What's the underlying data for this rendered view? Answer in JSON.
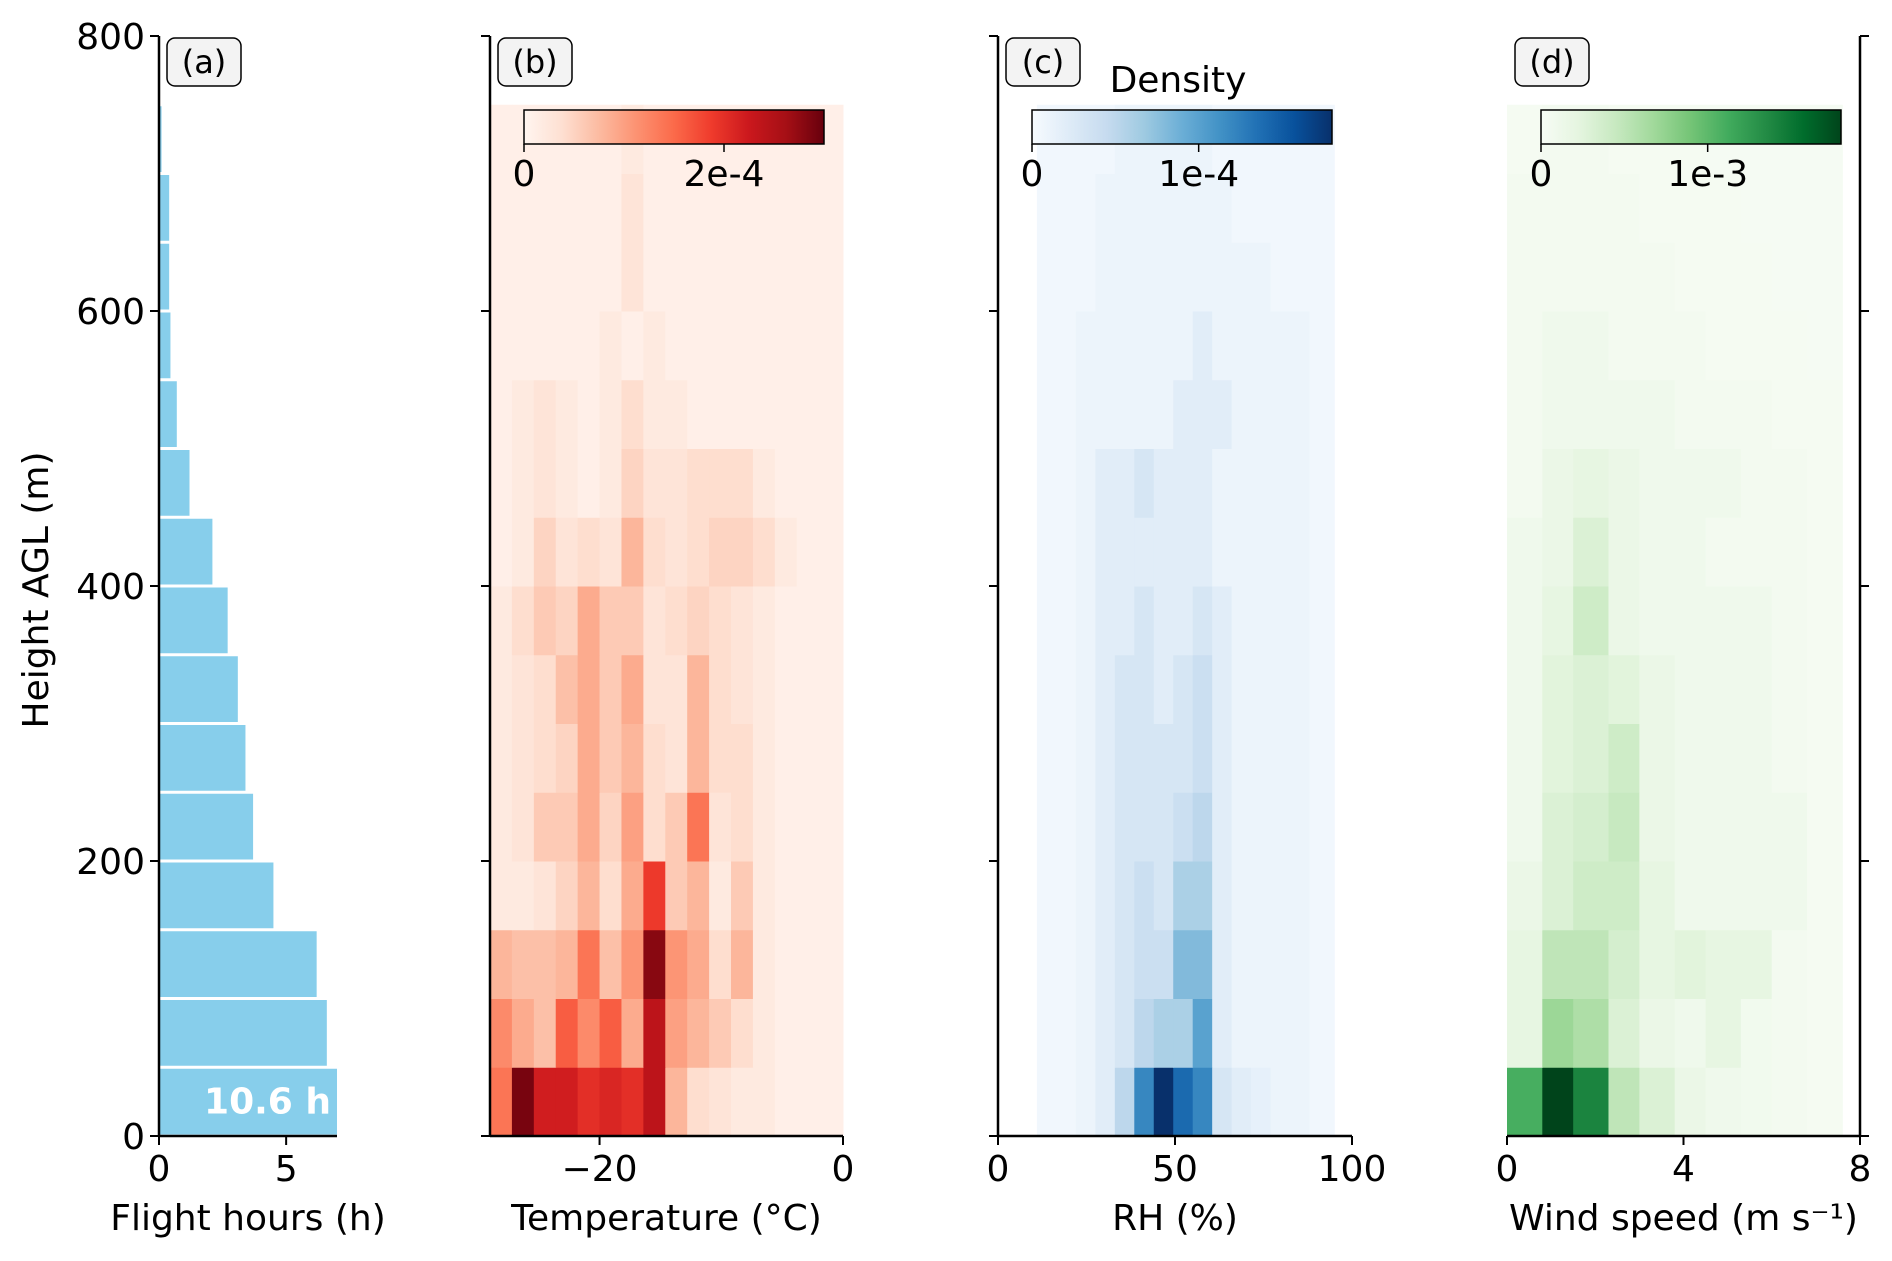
{
  "figure": {
    "ylabel": "Height AGL (m)",
    "density_label": "Density",
    "yticks": [
      0,
      200,
      400,
      600,
      800
    ],
    "ylim": [
      0,
      800
    ],
    "bin_height_m": 50
  },
  "chart_data": [
    {
      "type": "bar",
      "orientation": "horizontal",
      "panel_label": "(a)",
      "xlabel": "Flight hours (h)",
      "xlim": [
        0,
        7
      ],
      "xticks": [
        0,
        5
      ],
      "color": "#87ceeb",
      "annotation": "10.6 h",
      "bins": [
        [
          0,
          50
        ],
        [
          50,
          100
        ],
        [
          100,
          150
        ],
        [
          150,
          200
        ],
        [
          200,
          250
        ],
        [
          250,
          300
        ],
        [
          300,
          350
        ],
        [
          350,
          400
        ],
        [
          400,
          450
        ],
        [
          450,
          500
        ],
        [
          500,
          550
        ],
        [
          550,
          600
        ],
        [
          600,
          650
        ],
        [
          650,
          700
        ],
        [
          700,
          750
        ]
      ],
      "values": [
        7.0,
        6.6,
        6.2,
        4.5,
        3.7,
        3.4,
        3.1,
        2.7,
        2.1,
        1.2,
        0.7,
        0.45,
        0.4,
        0.4,
        0.1
      ]
    },
    {
      "type": "heatmap",
      "panel_label": "(b)",
      "xlabel": "Temperature (°C)",
      "xlim": [
        -29,
        0
      ],
      "xticks": [
        -20,
        0
      ],
      "xticklabels": [
        "−20",
        "0"
      ],
      "x_edges": [
        -29,
        -27.2,
        -25.4,
        -23.6,
        -21.8,
        -20,
        -18.2,
        -16.4,
        -14.6,
        -12.8,
        -11,
        -9.2,
        -7.4,
        -5.6,
        -3.8,
        -2,
        0
      ],
      "colormap": "Reds",
      "colors": [
        "#fff5f0",
        "#fee0d2",
        "#fcbba1",
        "#fc9272",
        "#fb6a4a",
        "#ef3b2c",
        "#cb181d",
        "#a50f15",
        "#67000d"
      ],
      "colorbar_ticks": [
        0,
        0.0002
      ],
      "colorbar_ticklabels": [
        "0",
        "2e-4"
      ],
      "vmax": 0.0003,
      "row_bins_from_ground": "50 m bins from 0 to 750 m",
      "density": [
        [
          0.00014,
          0.00029,
          0.00022,
          0.00022,
          0.0002,
          0.00021,
          0.0002,
          0.00024,
          8e-05,
          4e-05,
          3e-05,
          2e-05,
          2e-05,
          1e-05,
          1e-05,
          1e-05
        ],
        [
          0.00012,
          9e-05,
          7e-05,
          0.00016,
          0.00012,
          0.00016,
          9e-05,
          0.00024,
          0.0001,
          8e-05,
          6e-05,
          4e-05,
          2e-05,
          1e-05,
          1e-05,
          1e-05
        ],
        [
          8e-05,
          7e-05,
          7e-05,
          8e-05,
          0.00014,
          7e-05,
          0.00011,
          0.00028,
          0.00011,
          9e-05,
          4e-05,
          8e-05,
          2e-05,
          1e-05,
          1e-05,
          1e-05
        ],
        [
          2e-05,
          2e-05,
          3e-05,
          5e-05,
          8e-05,
          4e-05,
          9e-05,
          0.00019,
          6e-05,
          8e-05,
          2e-05,
          6e-05,
          2e-05,
          1e-05,
          1e-05,
          1e-05
        ],
        [
          2e-05,
          3e-05,
          6e-05,
          6e-05,
          9e-05,
          5e-05,
          0.0001,
          4e-05,
          6e-05,
          0.00014,
          3e-05,
          4e-05,
          2e-05,
          1e-05,
          1e-05,
          1e-05
        ],
        [
          2e-05,
          3e-05,
          4e-05,
          5e-05,
          9e-05,
          6e-05,
          8e-05,
          4e-05,
          3e-05,
          8e-05,
          4e-05,
          4e-05,
          2e-05,
          1e-05,
          1e-05,
          1e-05
        ],
        [
          2e-05,
          3e-05,
          4e-05,
          7e-05,
          9e-05,
          6e-05,
          9e-05,
          3e-05,
          3e-05,
          8e-05,
          4e-05,
          3e-05,
          2e-05,
          1e-05,
          1e-05,
          1e-05
        ],
        [
          2e-05,
          4e-05,
          6e-05,
          5e-05,
          9e-05,
          6e-05,
          6e-05,
          3e-05,
          4e-05,
          5e-05,
          4e-05,
          3e-05,
          2e-05,
          1e-05,
          1e-05,
          1e-05
        ],
        [
          1e-05,
          2e-05,
          5e-05,
          3e-05,
          4e-05,
          3e-05,
          8e-05,
          4e-05,
          3e-05,
          4e-05,
          5e-05,
          5e-05,
          4e-05,
          2e-05,
          1e-05,
          1e-05
        ],
        [
          1e-05,
          2e-05,
          3e-05,
          2e-05,
          1e-05,
          2e-05,
          5e-05,
          3e-05,
          3e-05,
          4e-05,
          4e-05,
          4e-05,
          2e-05,
          1e-05,
          1e-05,
          1e-05
        ],
        [
          1e-05,
          2e-05,
          3e-05,
          2e-05,
          1e-05,
          2e-05,
          4e-05,
          2e-05,
          2e-05,
          1e-05,
          1e-05,
          1e-05,
          1e-05,
          1e-05,
          1e-05,
          1e-05
        ],
        [
          1e-05,
          1e-05,
          1e-05,
          1e-05,
          1e-05,
          2e-05,
          1e-05,
          2e-05,
          1e-05,
          1e-05,
          1e-05,
          1e-05,
          1e-05,
          1e-05,
          1e-05,
          1e-05
        ],
        [
          1e-05,
          1e-05,
          1e-05,
          1e-05,
          1e-05,
          1e-05,
          3e-05,
          1e-05,
          1e-05,
          1e-05,
          1e-05,
          1e-05,
          1e-05,
          1e-05,
          1e-05,
          1e-05
        ],
        [
          1e-05,
          1e-05,
          1e-05,
          1e-05,
          1e-05,
          1e-05,
          3e-05,
          1e-05,
          1e-05,
          1e-05,
          1e-05,
          1e-05,
          1e-05,
          1e-05,
          1e-05,
          1e-05
        ],
        [
          1e-05,
          1e-05,
          1e-05,
          1e-05,
          1e-05,
          1e-05,
          2e-05,
          1e-05,
          1e-05,
          1e-05,
          1e-05,
          1e-05,
          1e-05,
          1e-05,
          1e-05,
          1e-05
        ]
      ]
    },
    {
      "type": "heatmap",
      "panel_label": "(c)",
      "xlabel": "RH (%)",
      "xlim": [
        0,
        100
      ],
      "xticks": [
        0,
        50,
        100
      ],
      "xticklabels": [
        "0",
        "50",
        "100"
      ],
      "x_edges": [
        11,
        16.5,
        22,
        27.5,
        33,
        38.5,
        44,
        49.5,
        55,
        60.5,
        66,
        71.5,
        77,
        82.5,
        88,
        95
      ],
      "colormap": "Blues",
      "colors": [
        "#f7fbff",
        "#deebf7",
        "#c6dbef",
        "#9ecae1",
        "#6baed6",
        "#4292c6",
        "#2171b5",
        "#08519c",
        "#08306b"
      ],
      "colorbar_ticks": [
        0,
        0.0001
      ],
      "colorbar_ticklabels": [
        "0",
        "1e-4"
      ],
      "vmax": 0.00018,
      "row_bins_from_ground": "50 m bins from 0 to 750 m",
      "density": [
        [
          5e-06,
          5e-06,
          1e-05,
          2e-05,
          5e-05,
          0.00012,
          0.00018,
          0.00014,
          0.00012,
          3e-05,
          2e-05,
          1.5e-05,
          1e-05,
          1e-05,
          5e-06
        ],
        [
          5e-06,
          5e-06,
          1e-05,
          2e-05,
          3e-05,
          5e-05,
          6e-05,
          6e-05,
          0.0001,
          2e-05,
          1e-05,
          1e-05,
          1e-05,
          1e-05,
          5e-06
        ],
        [
          5e-06,
          5e-06,
          1e-05,
          2e-05,
          3e-05,
          4e-05,
          4e-05,
          8e-05,
          8e-05,
          2e-05,
          1e-05,
          1e-05,
          1e-05,
          1e-05,
          5e-06
        ],
        [
          5e-06,
          5e-06,
          1e-05,
          2e-05,
          3e-05,
          4e-05,
          3e-05,
          6e-05,
          6e-05,
          2e-05,
          1e-05,
          1e-05,
          1e-05,
          1e-05,
          5e-06
        ],
        [
          5e-06,
          5e-06,
          1e-05,
          2e-05,
          3e-05,
          3e-05,
          3e-05,
          4e-05,
          5e-05,
          2e-05,
          1e-05,
          1e-05,
          1e-05,
          1e-05,
          5e-06
        ],
        [
          5e-06,
          5e-06,
          1e-05,
          2e-05,
          3e-05,
          3e-05,
          3e-05,
          3e-05,
          4e-05,
          2e-05,
          1e-05,
          1e-05,
          1e-05,
          1e-05,
          5e-06
        ],
        [
          5e-06,
          5e-06,
          1e-05,
          2e-05,
          3e-05,
          3e-05,
          2e-05,
          3e-05,
          4e-05,
          2e-05,
          1e-05,
          1e-05,
          1e-05,
          1e-05,
          5e-06
        ],
        [
          5e-06,
          5e-06,
          1e-05,
          2e-05,
          2e-05,
          3e-05,
          2e-05,
          2e-05,
          3e-05,
          2e-05,
          1e-05,
          1e-05,
          1e-05,
          1e-05,
          5e-06
        ],
        [
          5e-06,
          5e-06,
          1e-05,
          2e-05,
          2e-05,
          2e-05,
          2e-05,
          2e-05,
          2e-05,
          1e-05,
          1e-05,
          1e-05,
          1e-05,
          1e-05,
          5e-06
        ],
        [
          5e-06,
          5e-06,
          1e-05,
          2e-05,
          2e-05,
          3e-05,
          2e-05,
          2e-05,
          2e-05,
          1e-05,
          1e-05,
          1e-05,
          1e-05,
          1e-05,
          5e-06
        ],
        [
          5e-06,
          5e-06,
          1e-05,
          1e-05,
          1e-05,
          1e-05,
          1e-05,
          2e-05,
          2e-05,
          2e-05,
          1e-05,
          1e-05,
          1e-05,
          1e-05,
          5e-06
        ],
        [
          5e-06,
          5e-06,
          1e-05,
          1e-05,
          1e-05,
          1e-05,
          1e-05,
          1e-05,
          2e-05,
          1e-05,
          1e-05,
          1e-05,
          1e-05,
          1e-05,
          5e-06
        ],
        [
          5e-06,
          5e-06,
          5e-06,
          1e-05,
          1e-05,
          1e-05,
          1e-05,
          1e-05,
          1e-05,
          1e-05,
          1e-05,
          1e-05,
          5e-06,
          5e-06,
          5e-06
        ],
        [
          5e-06,
          5e-06,
          5e-06,
          1e-05,
          1e-05,
          1e-05,
          1e-05,
          1e-05,
          1e-05,
          1e-05,
          5e-06,
          5e-06,
          5e-06,
          5e-06,
          5e-06
        ],
        [
          5e-06,
          5e-06,
          5e-06,
          5e-06,
          1e-05,
          1e-05,
          1e-05,
          1e-05,
          1e-05,
          5e-06,
          5e-06,
          5e-06,
          5e-06,
          5e-06,
          5e-06
        ]
      ]
    },
    {
      "type": "heatmap",
      "panel_label": "(d)",
      "xlabel": "Wind speed (m s⁻¹)",
      "xlim": [
        0,
        8
      ],
      "xticks": [
        0,
        4,
        8
      ],
      "xticklabels": [
        "0",
        "4",
        "8"
      ],
      "x_edges": [
        0,
        0.8,
        1.5,
        2.3,
        3.0,
        3.8,
        4.5,
        5.3,
        6.0,
        6.8,
        7.6
      ],
      "colormap": "Greens",
      "colors": [
        "#f7fcf5",
        "#e5f5e0",
        "#c7e9c0",
        "#a1d99b",
        "#74c476",
        "#41ab5d",
        "#238b45",
        "#006d2c",
        "#00441b"
      ],
      "colorbar_ticks": [
        0,
        0.001
      ],
      "colorbar_ticklabels": [
        "0",
        "1e-3"
      ],
      "vmax": 0.0018,
      "row_bins_from_ground": "50 m bins from 0 to 750 m",
      "density": [
        [
          0.0011,
          0.0018,
          0.0014,
          0.0005,
          0.0003,
          0.00015,
          0.0001,
          8e-05,
          5e-05,
          3e-05
        ],
        [
          0.0002,
          0.0007,
          0.0006,
          0.0003,
          0.00015,
          0.0001,
          0.0002,
          8e-05,
          5e-05,
          3e-05
        ],
        [
          0.0002,
          0.0005,
          0.0005,
          0.00035,
          0.0002,
          0.00025,
          0.0002,
          0.0002,
          5e-05,
          3e-05
        ],
        [
          0.00015,
          0.0003,
          0.0004,
          0.0004,
          0.0002,
          0.0001,
          0.0001,
          0.0001,
          0.0001,
          3e-05
        ],
        [
          0.0001,
          0.0003,
          0.00035,
          0.00045,
          0.00015,
          0.0001,
          0.0001,
          0.0001,
          0.0001,
          3e-05
        ],
        [
          0.0001,
          0.00025,
          0.0003,
          0.0004,
          0.00015,
          0.0001,
          0.0001,
          0.0001,
          5e-05,
          3e-05
        ],
        [
          0.0001,
          0.00025,
          0.0003,
          0.00025,
          0.00015,
          0.0001,
          0.0001,
          0.0001,
          5e-05,
          3e-05
        ],
        [
          0.0001,
          0.0002,
          0.0004,
          0.00015,
          0.0001,
          0.0001,
          0.0001,
          0.0001,
          5e-05,
          3e-05
        ],
        [
          0.0001,
          0.00015,
          0.0003,
          0.00015,
          0.0001,
          0.0001,
          5e-05,
          5e-05,
          5e-05,
          3e-05
        ],
        [
          5e-05,
          0.00015,
          0.0002,
          0.00015,
          0.0001,
          0.0001,
          0.0001,
          5e-05,
          5e-05,
          3e-05
        ],
        [
          5e-05,
          0.0001,
          0.0001,
          0.0001,
          0.0001,
          5e-05,
          5e-05,
          5e-05,
          3e-05,
          3e-05
        ],
        [
          5e-05,
          0.0001,
          0.0001,
          5e-05,
          5e-05,
          5e-05,
          3e-05,
          3e-05,
          3e-05,
          2e-05
        ],
        [
          5e-05,
          5e-05,
          5e-05,
          5e-05,
          5e-05,
          3e-05,
          3e-05,
          3e-05,
          2e-05,
          2e-05
        ],
        [
          5e-05,
          5e-05,
          5e-05,
          5e-05,
          3e-05,
          3e-05,
          3e-05,
          2e-05,
          2e-05,
          2e-05
        ],
        [
          3e-05,
          5e-05,
          5e-05,
          3e-05,
          3e-05,
          3e-05,
          2e-05,
          2e-05,
          2e-05,
          2e-05
        ]
      ]
    }
  ]
}
